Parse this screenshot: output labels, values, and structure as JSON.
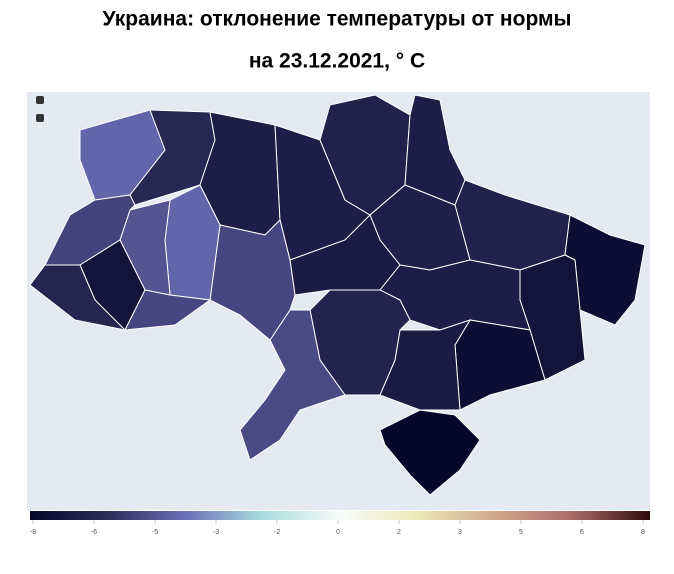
{
  "title": [
    "Украина: отклонение температуры от нормы",
    "на 23.12.2021, ° C"
  ],
  "regions": [
    -4.3,
    -6.3,
    -6.8,
    -6.8,
    -6.6,
    -6.8,
    -6.6,
    -6.7,
    -6.9,
    -7.6,
    -7.3,
    -6.8,
    -7.6,
    -6.9,
    -6.5,
    -5.1,
    -5.2,
    -4.3,
    -4.8,
    -5.3,
    -7.3,
    -6.4,
    -5.2,
    -8
  ],
  "colorscale": [
    "#06062a",
    "#2d2d5a",
    "#6a6fb8",
    "#a8dcde",
    "#f7fbf9",
    "#ece9b8",
    "#d0a88c",
    "#ab6a6a",
    "#2f0a0a"
  ],
  "colorlim": [
    -8,
    8
  ],
  "colorticks": [
    -8,
    {
      "value": -6.4,
      "label": "-6"
    },
    {
      "value": -4.8,
      "label": "-5"
    },
    {
      "value": -3.2,
      "label": "-3"
    },
    {
      "value": -1.6,
      "label": "-2"
    },
    0,
    {
      "value": 1.6,
      "label": "2"
    },
    {
      "value": 3.2,
      "label": "3"
    },
    {
      "value": 4.8,
      "label": "5"
    },
    {
      "value": 6.4,
      "label": "6"
    },
    8
  ]
}
